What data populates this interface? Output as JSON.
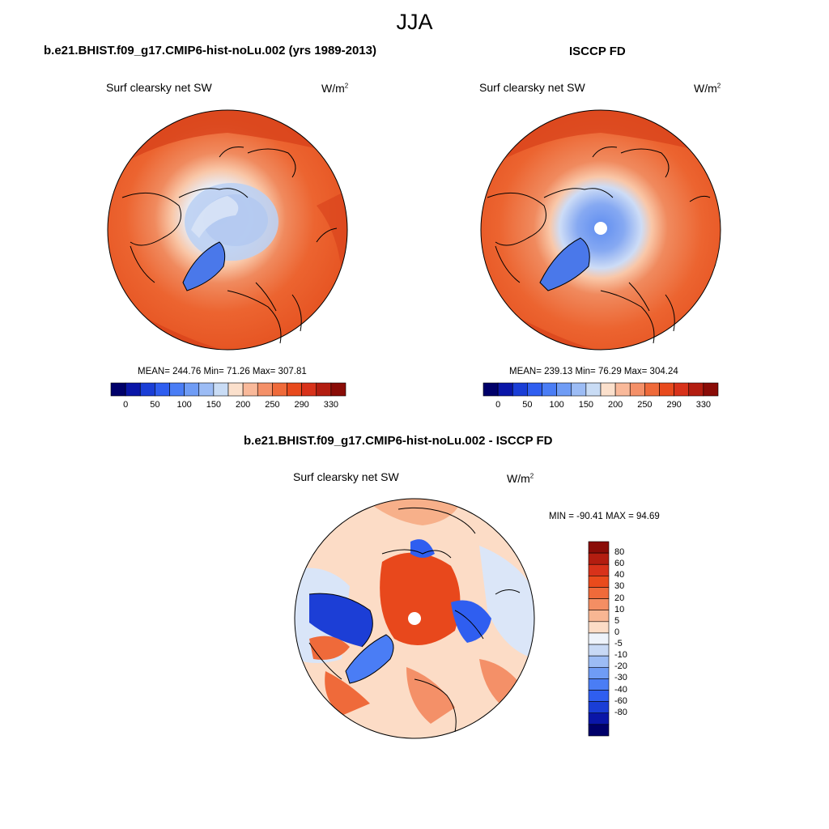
{
  "season_title": "JJA",
  "panels": [
    {
      "title": "b.e21.BHIST.f09_g17.CMIP6-hist-noLu.002 (yrs 1989-2013)",
      "variable": "Surf clearsky net SW",
      "units": "W/m",
      "units_exp": "2",
      "stats": {
        "mean": 244.76,
        "min": 71.26,
        "max": 307.81
      },
      "stats_text": "MEAN= 244.76  Min=  71.26  Max= 307.81"
    },
    {
      "title": "ISCCP FD",
      "variable": "Surf clearsky net SW",
      "units": "W/m",
      "units_exp": "2",
      "stats": {
        "mean": 239.13,
        "min": 76.29,
        "max": 304.24
      },
      "stats_text": "MEAN= 239.13  Min=  76.29  Max= 304.24"
    }
  ],
  "diff_panel": {
    "title": "b.e21.BHIST.f09_g17.CMIP6-hist-noLu.002 - ISCCP FD",
    "variable": "Surf clearsky net SW",
    "units": "W/m",
    "units_exp": "2",
    "stats": {
      "min": -90.41,
      "max": 94.69
    },
    "stats_text": "MIN = -90.41 MAX =  94.69"
  },
  "colorbar_abs": {
    "colors": [
      "#00006a",
      "#0a16a8",
      "#1a3ed6",
      "#2f5ef0",
      "#4a7df5",
      "#6f9cf5",
      "#9cbcf5",
      "#c9dcf5",
      "#fbe0cc",
      "#f9b99a",
      "#f49068",
      "#ef6a3a",
      "#e84a1d",
      "#d8321a",
      "#b31d10",
      "#8a0c07"
    ],
    "ticks": [
      "0",
      "50",
      "100",
      "150",
      "200",
      "250",
      "290",
      "330"
    ]
  },
  "colorbar_diff": {
    "colors": [
      "#8a0c07",
      "#b31d10",
      "#d8321a",
      "#ea4b1c",
      "#f06a3a",
      "#f48e63",
      "#f8b693",
      "#fcdcc6",
      "#eef3fb",
      "#c8d9f5",
      "#9cbcf5",
      "#6f9cf5",
      "#4a7df5",
      "#2f5ef0",
      "#1a3ed6",
      "#0a16a8",
      "#00006a"
    ],
    "labels": [
      "80",
      "60",
      "40",
      "30",
      "20",
      "10",
      "5",
      "0",
      "-5",
      "-10",
      "-20",
      "-30",
      "-40",
      "-60",
      "-80"
    ]
  }
}
